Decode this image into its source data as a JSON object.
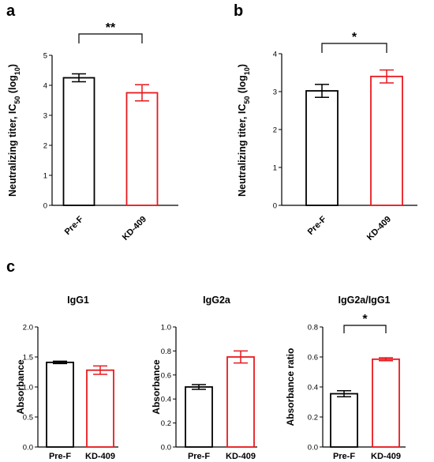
{
  "panels": {
    "a": "a",
    "b": "b",
    "c": "c"
  },
  "chart_data": [
    {
      "id": "a",
      "type": "bar",
      "categories": [
        "Pre-F",
        "KD-409"
      ],
      "values": [
        4.25,
        3.75
      ],
      "errors": [
        0.13,
        0.27
      ],
      "colors": [
        "#000000",
        "#e8191e"
      ],
      "ylabel": "Neutralizing titer, IC",
      "ylabel_sub": "50",
      "ylabel_suffix": " (log",
      "ylabel_sub2": "10",
      "ylabel_end": ")",
      "ylim": [
        0,
        5
      ],
      "yticks": [
        "0",
        "1",
        "2",
        "3",
        "4",
        "5"
      ],
      "significance": "**",
      "title": ""
    },
    {
      "id": "b",
      "type": "bar",
      "categories": [
        "Pre-F",
        "KD-409"
      ],
      "values": [
        3.02,
        3.4
      ],
      "errors": [
        0.17,
        0.17
      ],
      "colors": [
        "#000000",
        "#e8191e"
      ],
      "ylabel": "Neutralizing titer, IC",
      "ylabel_sub": "50",
      "ylabel_suffix": " (log",
      "ylabel_sub2": "10",
      "ylabel_end": ")",
      "ylim": [
        0,
        4
      ],
      "yticks": [
        "0",
        "1",
        "2",
        "3",
        "4"
      ],
      "significance": "*",
      "title": ""
    },
    {
      "id": "c1",
      "type": "bar",
      "title": "IgG1",
      "categories": [
        "Pre-F",
        "KD-409"
      ],
      "values": [
        1.41,
        1.28
      ],
      "errors": [
        0.02,
        0.07
      ],
      "colors": [
        "#000000",
        "#e8191e"
      ],
      "ylabel": "Absorbance",
      "ylim": [
        0,
        2.0
      ],
      "yticks": [
        "0.0",
        "0.5",
        "1.0",
        "1.5",
        "2.0"
      ],
      "significance": ""
    },
    {
      "id": "c2",
      "type": "bar",
      "title": "IgG2a",
      "categories": [
        "Pre-F",
        "KD-409"
      ],
      "values": [
        0.5,
        0.75
      ],
      "errors": [
        0.02,
        0.05
      ],
      "colors": [
        "#000000",
        "#e8191e"
      ],
      "ylabel": "Absorbance",
      "ylim": [
        0,
        1.0
      ],
      "yticks": [
        "0.0",
        "0.2",
        "0.4",
        "0.6",
        "0.8",
        "1.0"
      ],
      "significance": ""
    },
    {
      "id": "c3",
      "type": "bar",
      "title": "IgG2a/IgG1",
      "categories": [
        "Pre-F",
        "KD-409"
      ],
      "values": [
        0.355,
        0.585
      ],
      "errors": [
        0.02,
        0.01
      ],
      "colors": [
        "#000000",
        "#e8191e"
      ],
      "ylabel": "Absorbance ratio",
      "ylim": [
        0,
        0.8
      ],
      "yticks": [
        "0.0",
        "0.2",
        "0.4",
        "0.6",
        "0.8"
      ],
      "significance": "*"
    }
  ]
}
